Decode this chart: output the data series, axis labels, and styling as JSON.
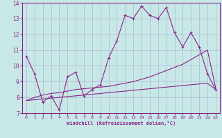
{
  "title": "",
  "xlabel": "Windchill (Refroidissement éolien,°C)",
  "ylabel": "",
  "xlim": [
    -0.5,
    23.5
  ],
  "ylim": [
    7,
    14
  ],
  "yticks": [
    7,
    8,
    9,
    10,
    11,
    12,
    13,
    14
  ],
  "xticks": [
    0,
    1,
    2,
    3,
    4,
    5,
    6,
    7,
    8,
    9,
    10,
    11,
    12,
    13,
    14,
    15,
    16,
    17,
    18,
    19,
    20,
    21,
    22,
    23
  ],
  "background_color": "#c8e8e8",
  "grid_color": "#aabbcc",
  "line_color": "#882288",
  "line1": [
    10.6,
    9.5,
    7.7,
    8.1,
    7.2,
    9.3,
    9.6,
    8.1,
    8.5,
    8.8,
    10.5,
    11.6,
    13.2,
    13.0,
    13.8,
    13.2,
    13.0,
    13.7,
    12.1,
    11.2,
    12.1,
    11.2,
    9.5,
    8.5
  ],
  "line2": [
    7.8,
    8.0,
    8.15,
    8.25,
    8.3,
    8.4,
    8.5,
    8.55,
    8.6,
    8.65,
    8.7,
    8.8,
    8.9,
    9.0,
    9.15,
    9.3,
    9.5,
    9.7,
    9.9,
    10.1,
    10.4,
    10.7,
    11.0,
    8.6
  ],
  "line3": [
    7.8,
    7.85,
    7.9,
    7.95,
    8.0,
    8.05,
    8.1,
    8.15,
    8.2,
    8.25,
    8.3,
    8.35,
    8.4,
    8.45,
    8.5,
    8.55,
    8.6,
    8.65,
    8.7,
    8.75,
    8.8,
    8.85,
    8.9,
    8.5
  ]
}
